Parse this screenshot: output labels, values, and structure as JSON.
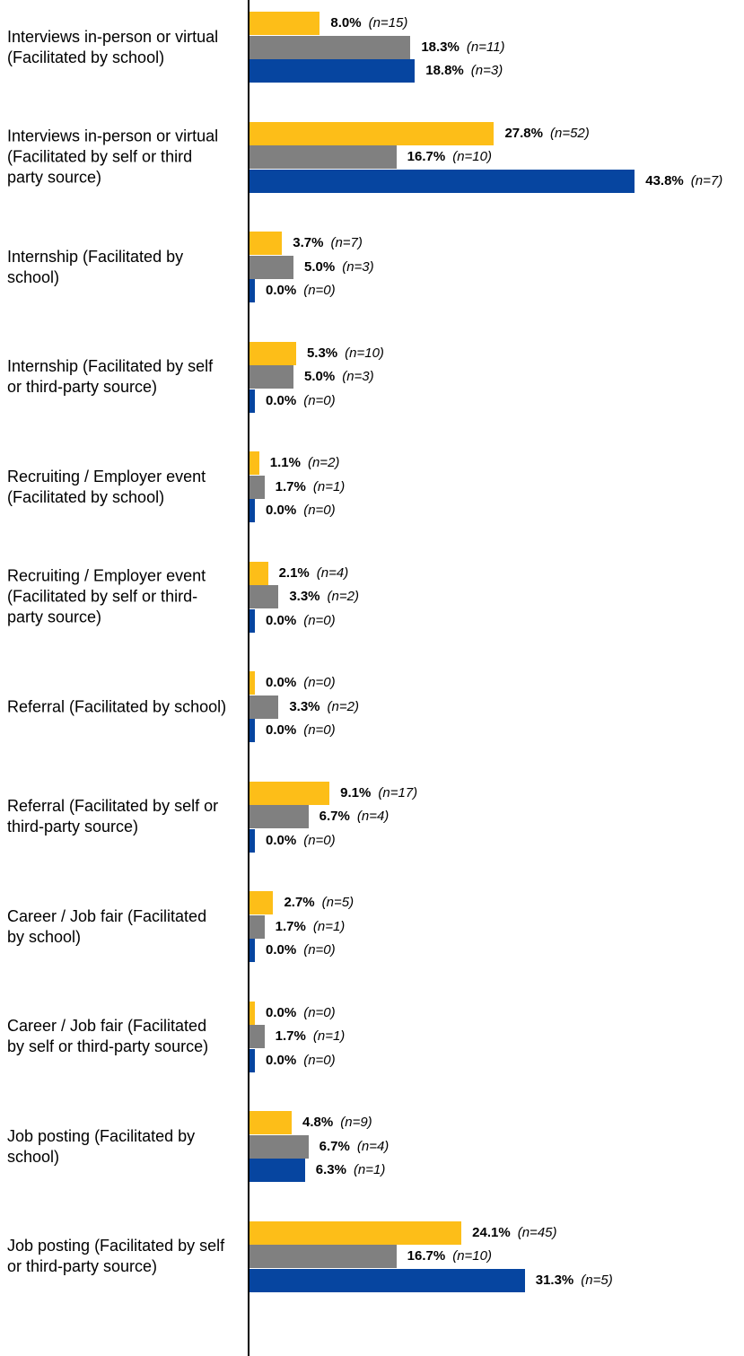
{
  "chart_data": {
    "type": "bar",
    "orientation": "horizontal",
    "categories": [
      "Interviews in-person or virtual (Facilitated by school)",
      "Interviews in-person or virtual (Facilitated by self or third party source)",
      "Internship (Facilitated by school)",
      "Internship (Facilitated by self or third-party source)",
      "Recruiting / Employer event (Facilitated by school)",
      "Recruiting / Employer event (Facilitated by self or third-party source)",
      "Referral (Facilitated by school)",
      "Referral (Facilitated by self or third-party source)",
      "Career / Job fair (Facilitated by school)",
      "Career / Job fair (Facilitated by self or third-party source)",
      "Job posting (Facilitated by school)",
      "Job posting (Facilitated by self or third-party source)"
    ],
    "series": [
      {
        "color": "#fdbe18",
        "values": [
          8.0,
          27.8,
          3.7,
          5.3,
          1.1,
          2.1,
          0.0,
          9.1,
          2.7,
          0.0,
          4.8,
          24.1
        ],
        "value_labels": [
          "8.0%",
          "27.8%",
          "3.7%",
          "5.3%",
          "1.1%",
          "2.1%",
          "0.0%",
          "9.1%",
          "2.7%",
          "0.0%",
          "4.8%",
          "24.1%"
        ],
        "n_labels": [
          "(n=15)",
          "(n=52)",
          "(n=7)",
          "(n=10)",
          "(n=2)",
          "(n=4)",
          "(n=0)",
          "(n=17)",
          "(n=5)",
          "(n=0)",
          "(n=9)",
          "(n=45)"
        ]
      },
      {
        "color": "#808080",
        "values": [
          18.3,
          16.7,
          5.0,
          5.0,
          1.7,
          3.3,
          3.3,
          6.7,
          1.7,
          1.7,
          6.7,
          16.7
        ],
        "value_labels": [
          "18.3%",
          "16.7%",
          "5.0%",
          "5.0%",
          "1.7%",
          "3.3%",
          "3.3%",
          "6.7%",
          "1.7%",
          "1.7%",
          "6.7%",
          "16.7%"
        ],
        "n_labels": [
          "(n=11)",
          "(n=10)",
          "(n=3)",
          "(n=3)",
          "(n=1)",
          "(n=2)",
          "(n=2)",
          "(n=4)",
          "(n=1)",
          "(n=1)",
          "(n=4)",
          "(n=10)"
        ]
      },
      {
        "color": "#0645a0",
        "values": [
          18.8,
          43.8,
          0.0,
          0.0,
          0.0,
          0.0,
          0.0,
          0.0,
          0.0,
          0.0,
          6.3,
          31.3
        ],
        "value_labels": [
          "18.8%",
          "43.8%",
          "0.0%",
          "0.0%",
          "0.0%",
          "0.0%",
          "0.0%",
          "0.0%",
          "0.0%",
          "0.0%",
          "6.3%",
          "31.3%"
        ],
        "n_labels": [
          "(n=3)",
          "(n=7)",
          "(n=0)",
          "(n=0)",
          "(n=0)",
          "(n=0)",
          "(n=0)",
          "(n=0)",
          "(n=0)",
          "(n=0)",
          "(n=1)",
          "(n=5)"
        ]
      }
    ]
  }
}
